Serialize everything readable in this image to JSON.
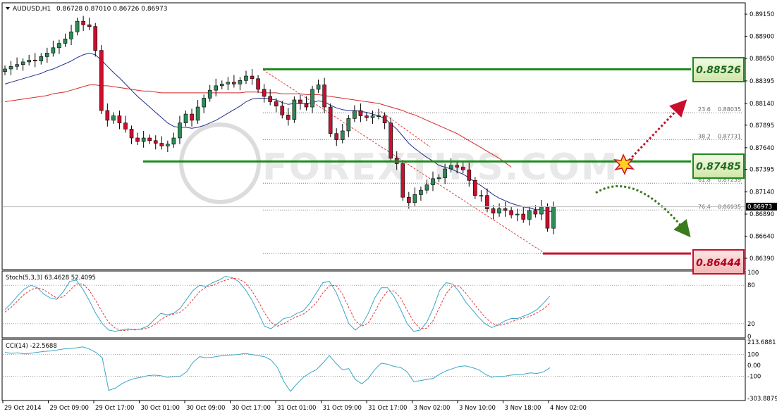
{
  "colors": {
    "background": "#ffffff",
    "frame": "#000000",
    "grid": "#c8c8c8",
    "bull": "#2e8b57",
    "bear": "#c8102e",
    "ma_fast": "#1f2f8f",
    "ma_slow": "#d42a2a",
    "stoch_main": "#3aa6c8",
    "stoch_signal": "#e23a3a",
    "cci": "#3aa6c8",
    "resistance": "#1f8a1f",
    "support": "#c8102e",
    "arrow_up": "#c8102e",
    "arrow_down": "#3c7a1e",
    "watermark": "#d8d8d8"
  },
  "header": {
    "symbol_label": "AUDUSD,H1",
    "ohlc_label": "0.86728 0.87010 0.86726 0.86973"
  },
  "watermark": {
    "text": "FOREXTIPS.COM"
  },
  "chart_data": [
    {
      "type": "line",
      "name": "price",
      "ylim": [
        0.8627,
        0.8927
      ],
      "y_ticks": [
        0.8915,
        0.889,
        0.8865,
        0.88395,
        0.8814,
        0.87895,
        0.8764,
        0.87395,
        0.8714,
        0.8689,
        0.8664,
        0.8639
      ],
      "y_tick_labels": [
        "0.89150",
        "0.88900",
        "0.88650",
        "0.88395",
        "0.88140",
        "0.87895",
        "0.87640",
        "0.87395",
        "0.87140",
        "0.86890",
        "0.86640",
        "0.86390"
      ],
      "x_labels": [
        "29 Oct 2014",
        "29 Oct 09:00",
        "29 Oct 17:00",
        "30 Oct 01:00",
        "30 Oct 09:00",
        "30 Oct 17:00",
        "31 Oct 01:00",
        "31 Oct 09:00",
        "31 Oct 17:00",
        "3 Nov 02:00",
        "3 Nov 10:00",
        "3 Nov 18:00",
        "4 Nov 02:00"
      ],
      "current_price": 0.86973,
      "current_price_label": "0.86973",
      "closes": [
        0.8853,
        0.8856,
        0.8858,
        0.8861,
        0.8863,
        0.8862,
        0.8867,
        0.8871,
        0.8877,
        0.8882,
        0.8887,
        0.8895,
        0.8907,
        0.8903,
        0.8901,
        0.8874,
        0.8806,
        0.8795,
        0.88,
        0.8792,
        0.8785,
        0.8775,
        0.8771,
        0.8775,
        0.8772,
        0.8769,
        0.8766,
        0.8768,
        0.8775,
        0.8792,
        0.8802,
        0.8795,
        0.881,
        0.882,
        0.8829,
        0.8834,
        0.8836,
        0.8838,
        0.8836,
        0.884,
        0.8845,
        0.8842,
        0.883,
        0.8822,
        0.8816,
        0.8811,
        0.8801,
        0.8796,
        0.8818,
        0.8814,
        0.881,
        0.883,
        0.8835,
        0.881,
        0.878,
        0.8773,
        0.8783,
        0.8797,
        0.8806,
        0.88,
        0.8798,
        0.88,
        0.88,
        0.8792,
        0.8752,
        0.8746,
        0.8708,
        0.8702,
        0.8711,
        0.8716,
        0.8722,
        0.8729,
        0.873,
        0.874,
        0.8744,
        0.8742,
        0.8739,
        0.8727,
        0.871,
        0.871,
        0.8695,
        0.869,
        0.8695,
        0.8693,
        0.8688,
        0.8689,
        0.8683,
        0.8693,
        0.8689,
        0.8697,
        0.8673,
        0.8697
      ],
      "series": [
        {
          "name": "",
          "role": "ma_fast",
          "values": [
            0.8836,
            0.8838,
            0.884,
            0.8842,
            0.8844,
            0.8846,
            0.8848,
            0.8851,
            0.8853,
            0.8856,
            0.8859,
            0.8862,
            0.8866,
            0.8869,
            0.8871,
            0.8869,
            0.8863,
            0.8856,
            0.8849,
            0.8843,
            0.8836,
            0.8829,
            0.8822,
            0.8816,
            0.881,
            0.8804,
            0.8798,
            0.8792,
            0.8788,
            0.8787,
            0.8787,
            0.8786,
            0.8787,
            0.8789,
            0.8792,
            0.8795,
            0.8799,
            0.8803,
            0.8807,
            0.8811,
            0.8816,
            0.8819,
            0.882,
            0.882,
            0.8819,
            0.8818,
            0.8815,
            0.8813,
            0.8814,
            0.8814,
            0.8814,
            0.8815,
            0.8817,
            0.8816,
            0.8812,
            0.8809,
            0.8807,
            0.8806,
            0.8806,
            0.8805,
            0.8804,
            0.8802,
            0.88,
            0.8797,
            0.8791,
            0.8785,
            0.8777,
            0.8769,
            0.8763,
            0.8758,
            0.8753,
            0.8749,
            0.8744,
            0.8742,
            0.874,
            0.8737,
            0.8734,
            0.873,
            0.8725,
            0.8721,
            0.8716,
            0.8711,
            0.8707,
            0.8704,
            0.8701,
            0.8699,
            0.8697,
            0.8696,
            0.8694,
            0.8694,
            0.8692,
            0.8692
          ]
        },
        {
          "name": "",
          "role": "ma_slow",
          "values": [
            0.8816,
            0.8817,
            0.8818,
            0.8819,
            0.882,
            0.8821,
            0.8822,
            0.8823,
            0.8825,
            0.8826,
            0.8827,
            0.8829,
            0.8831,
            0.8833,
            0.8835,
            0.8835,
            0.8834,
            0.8834,
            0.8833,
            0.8832,
            0.8831,
            0.883,
            0.8829,
            0.8828,
            0.8828,
            0.8827,
            0.8826,
            0.8826,
            0.8826,
            0.8826,
            0.8826,
            0.8826,
            0.8826,
            0.8826,
            0.8826,
            0.8826,
            0.8826,
            0.8826,
            0.8826,
            0.8826,
            0.8827,
            0.8827,
            0.8827,
            0.8826,
            0.8826,
            0.8826,
            0.8825,
            0.8825,
            0.8825,
            0.8825,
            0.8824,
            0.8824,
            0.8824,
            0.8823,
            0.8822,
            0.8821,
            0.882,
            0.8819,
            0.8818,
            0.8817,
            0.8816,
            0.8815,
            0.8814,
            0.8812,
            0.881,
            0.8808,
            0.8806,
            0.8803,
            0.8801,
            0.8798,
            0.8795,
            0.8792,
            0.8789,
            0.8786,
            0.8783,
            0.878,
            0.8776,
            0.8772,
            0.8768,
            0.8764,
            0.876,
            0.8756,
            0.8752,
            0.8747,
            0.8742
          ]
        }
      ],
      "fib_levels": [
        {
          "label": "23.6",
          "value_label": "0.88035",
          "value": 0.88035
        },
        {
          "label": "38.2",
          "value_label": "0.87731",
          "value": 0.87731
        },
        {
          "label": "61.8",
          "value_label": "0.87239",
          "value": 0.87239
        },
        {
          "label": "76.4",
          "value_label": "0.86935",
          "value": 0.86935
        }
      ],
      "levels": {
        "resistance_high": {
          "value": 0.88526,
          "label": "0.88526"
        },
        "pivot": {
          "value": 0.87485,
          "label": "0.87485"
        },
        "support_low": {
          "value": 0.86444,
          "label": "0.86444"
        }
      },
      "grid": false
    },
    {
      "type": "line",
      "name": "stochastic",
      "title": "Stoch(5,3,3) 63.4628 52.4095",
      "ylim": [
        0,
        100
      ],
      "y_ticks": [
        100,
        80,
        20,
        0
      ],
      "y_tick_labels": [
        "100",
        "80",
        "20",
        "0"
      ],
      "levels": [
        80,
        20
      ],
      "series": [
        {
          "name": "",
          "role": "stoch_main",
          "values": [
            42,
            52,
            64,
            74,
            80,
            76,
            66,
            60,
            58,
            70,
            86,
            88,
            74,
            56,
            36,
            20,
            10,
            8,
            10,
            12,
            10,
            12,
            16,
            26,
            36,
            34,
            36,
            44,
            58,
            72,
            80,
            78,
            84,
            88,
            94,
            92,
            86,
            74,
            58,
            38,
            16,
            12,
            20,
            28,
            30,
            36,
            40,
            52,
            68,
            84,
            86,
            70,
            46,
            20,
            10,
            18,
            36,
            60,
            76,
            76,
            62,
            42,
            20,
            8,
            10,
            22,
            44,
            72,
            84,
            82,
            70,
            54,
            42,
            30,
            20,
            14,
            18,
            24,
            28,
            28,
            32,
            36,
            42,
            52,
            63
          ]
        },
        {
          "name": "",
          "role": "stoch_signal",
          "values": [
            38,
            46,
            56,
            66,
            73,
            76,
            73,
            66,
            60,
            62,
            72,
            82,
            82,
            72,
            56,
            38,
            22,
            13,
            9,
            10,
            11,
            11,
            13,
            18,
            26,
            32,
            35,
            38,
            46,
            58,
            70,
            77,
            80,
            84,
            88,
            91,
            90,
            84,
            72,
            56,
            37,
            22,
            16,
            20,
            26,
            31,
            35,
            43,
            53,
            68,
            79,
            80,
            67,
            45,
            25,
            16,
            21,
            38,
            58,
            71,
            71,
            60,
            41,
            23,
            12,
            13,
            25,
            46,
            67,
            79,
            79,
            68,
            55,
            42,
            30,
            21,
            17,
            19,
            23,
            26,
            29,
            32,
            37,
            43,
            52
          ]
        }
      ]
    },
    {
      "type": "line",
      "name": "cci",
      "title": "CCI(14) -22.5688",
      "ylim": [
        -303.8879,
        213.6881
      ],
      "y_ticks": [
        213.6881,
        100,
        0,
        -100,
        -303.8879
      ],
      "y_tick_labels": [
        "213.6881",
        "100",
        "0.00",
        "-100",
        "-303.8879"
      ],
      "series": [
        {
          "name": "",
          "role": "cci",
          "values": [
            120,
            110,
            115,
            105,
            112,
            120,
            128,
            132,
            140,
            150,
            155,
            160,
            170,
            150,
            120,
            70,
            -230,
            -210,
            -170,
            -140,
            -120,
            -110,
            -95,
            -90,
            -95,
            -110,
            -105,
            -100,
            -60,
            30,
            80,
            70,
            75,
            85,
            90,
            95,
            100,
            110,
            100,
            90,
            80,
            50,
            -20,
            -150,
            -240,
            -170,
            -110,
            -70,
            -40,
            20,
            90,
            20,
            -40,
            -30,
            -130,
            -170,
            -120,
            -40,
            20,
            10,
            -10,
            -20,
            -60,
            -150,
            -140,
            -130,
            -120,
            -80,
            -50,
            -30,
            -10,
            -5,
            -20,
            -40,
            -80,
            -110,
            -100,
            -100,
            -90,
            -85,
            -80,
            -70,
            -75,
            -60,
            -22
          ]
        }
      ]
    }
  ]
}
